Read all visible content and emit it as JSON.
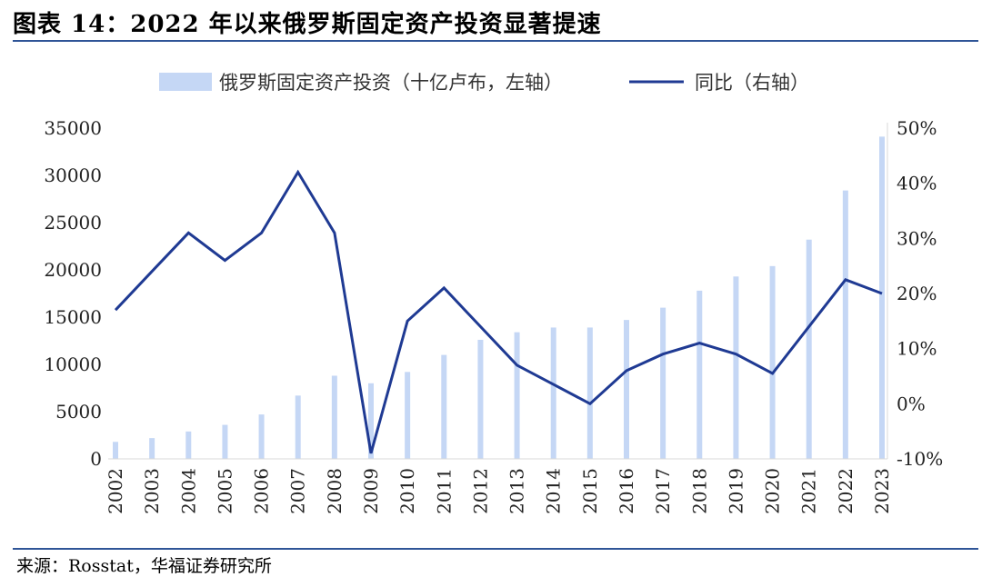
{
  "header": {
    "title": "图表 14：2022 年以来俄罗斯固定资产投资显著提速"
  },
  "footer": {
    "source": "来源：Rosstat，华福证券研究所"
  },
  "chart_data": {
    "type": "bar",
    "categories": [
      "2002",
      "2003",
      "2004",
      "2005",
      "2006",
      "2007",
      "2008",
      "2009",
      "2010",
      "2011",
      "2012",
      "2013",
      "2014",
      "2015",
      "2016",
      "2017",
      "2018",
      "2019",
      "2020",
      "2021",
      "2022",
      "2023"
    ],
    "series": [
      {
        "name": "俄罗斯固定资产投资（十亿卢布，左轴）",
        "type": "bar",
        "axis": "left",
        "color": "#c5d7f5",
        "values": [
          1800,
          2200,
          2900,
          3600,
          4700,
          6700,
          8800,
          8000,
          9200,
          11000,
          12600,
          13400,
          13900,
          13900,
          14700,
          16000,
          17800,
          19300,
          20400,
          23200,
          28400,
          34100
        ]
      },
      {
        "name": "同比（右轴）",
        "type": "line",
        "axis": "right",
        "color": "#1f3a93",
        "values": [
          17,
          24,
          31,
          26,
          31,
          42,
          31,
          -9,
          15,
          21,
          14,
          7,
          3.5,
          0,
          6,
          9,
          11,
          9,
          5.5,
          14,
          22.5,
          20
        ]
      }
    ],
    "left_axis": {
      "min": 0,
      "max": 35000,
      "step": 5000,
      "ticks": [
        "0",
        "5000",
        "10000",
        "15000",
        "20000",
        "25000",
        "30000",
        "35000"
      ]
    },
    "right_axis": {
      "min": -10,
      "max": 50,
      "step": 10,
      "ticks": [
        "-10%",
        "0%",
        "10%",
        "20%",
        "30%",
        "40%",
        "50%"
      ]
    },
    "legend": "top-center",
    "grid": false
  }
}
